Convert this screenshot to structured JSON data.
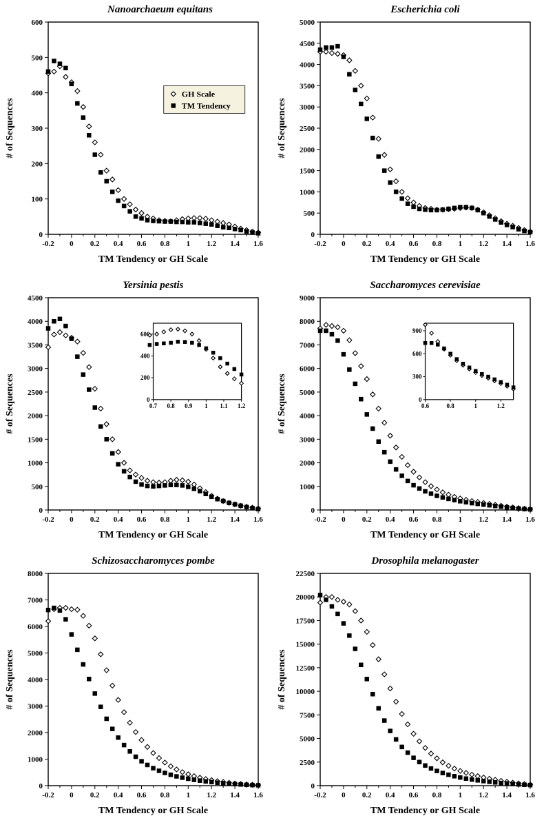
{
  "globals": {
    "xlabel": "TM Tendency or GH Scale",
    "xlabel_alt": "TM Tendency  or GH Scale",
    "ylabel": "# of Sequences",
    "xlim": [
      -0.2,
      1.6
    ],
    "xticks": [
      -0.2,
      0,
      0.2,
      0.4,
      0.6,
      0.8,
      1,
      1.2,
      1.4,
      1.6
    ],
    "title_fontsize": 15,
    "axis_label_fontsize": 14,
    "tick_fontsize": 11,
    "background_color": "#ffffff",
    "axis_color": "#000000",
    "series_gh": {
      "name": "GH Scale",
      "marker": "diamond-open",
      "color": "#000000",
      "fill": "#ffffff",
      "size": 7
    },
    "series_tm": {
      "name": "TM Tendency",
      "marker": "square",
      "color": "#000000",
      "fill": "#000000",
      "size": 6
    }
  },
  "legend": {
    "visible_in_panel": 0,
    "box_color": "#f5f2df",
    "border_color": "#000000",
    "items": [
      "GH Scale",
      "TM Tendency"
    ]
  },
  "panels": [
    {
      "title": "Nanoarchaeum equitans",
      "ylim": [
        0,
        600
      ],
      "ytick_step": 100,
      "x": [
        -0.2,
        -0.15,
        -0.1,
        -0.05,
        0,
        0.05,
        0.1,
        0.15,
        0.2,
        0.25,
        0.3,
        0.35,
        0.4,
        0.45,
        0.5,
        0.55,
        0.6,
        0.65,
        0.7,
        0.75,
        0.8,
        0.85,
        0.9,
        0.95,
        1.0,
        1.05,
        1.1,
        1.15,
        1.2,
        1.25,
        1.3,
        1.35,
        1.4,
        1.45,
        1.5,
        1.55,
        1.6
      ],
      "gh": [
        455,
        460,
        475,
        445,
        430,
        405,
        360,
        305,
        260,
        225,
        180,
        155,
        125,
        100,
        85,
        70,
        60,
        50,
        45,
        40,
        38,
        37,
        40,
        43,
        45,
        46,
        46,
        44,
        40,
        36,
        32,
        28,
        22,
        16,
        12,
        8,
        5
      ],
      "tm": [
        460,
        490,
        482,
        470,
        425,
        370,
        330,
        280,
        225,
        175,
        150,
        120,
        95,
        80,
        65,
        50,
        45,
        40,
        38,
        37,
        36,
        36,
        35,
        35,
        34,
        34,
        32,
        30,
        28,
        24,
        20,
        18,
        15,
        12,
        8,
        5,
        3
      ]
    },
    {
      "title": "Escherichia coli",
      "ylim": [
        0,
        5000
      ],
      "ytick_step": 500,
      "x": [
        -0.2,
        -0.15,
        -0.1,
        -0.05,
        0,
        0.05,
        0.1,
        0.15,
        0.2,
        0.25,
        0.3,
        0.35,
        0.4,
        0.45,
        0.5,
        0.55,
        0.6,
        0.65,
        0.7,
        0.75,
        0.8,
        0.85,
        0.9,
        0.95,
        1.0,
        1.05,
        1.1,
        1.15,
        1.2,
        1.25,
        1.3,
        1.35,
        1.4,
        1.45,
        1.5,
        1.55,
        1.6
      ],
      "gh": [
        4300,
        4300,
        4270,
        4250,
        4220,
        4100,
        3850,
        3500,
        3200,
        2750,
        2250,
        1870,
        1530,
        1250,
        1000,
        850,
        750,
        670,
        620,
        600,
        580,
        580,
        590,
        600,
        620,
        630,
        620,
        580,
        520,
        450,
        380,
        310,
        250,
        200,
        150,
        100,
        60
      ],
      "tm": [
        4350,
        4400,
        4400,
        4430,
        4180,
        3770,
        3400,
        3070,
        2720,
        2270,
        1830,
        1500,
        1220,
        1000,
        840,
        720,
        650,
        600,
        580,
        570,
        570,
        580,
        600,
        620,
        640,
        640,
        620,
        570,
        500,
        420,
        350,
        280,
        220,
        170,
        120,
        80,
        50
      ]
    },
    {
      "title": "Yersinia pestis",
      "ylim": [
        0,
        4500
      ],
      "ytick_step": 500,
      "x": [
        -0.2,
        -0.15,
        -0.1,
        -0.05,
        0,
        0.05,
        0.1,
        0.15,
        0.2,
        0.25,
        0.3,
        0.35,
        0.4,
        0.45,
        0.5,
        0.55,
        0.6,
        0.65,
        0.7,
        0.75,
        0.8,
        0.85,
        0.9,
        0.95,
        1.0,
        1.05,
        1.1,
        1.15,
        1.2,
        1.25,
        1.3,
        1.35,
        1.4,
        1.45,
        1.5,
        1.55,
        1.6
      ],
      "gh": [
        3450,
        3720,
        3770,
        3700,
        3650,
        3570,
        3330,
        3030,
        2570,
        2150,
        1820,
        1500,
        1230,
        1000,
        840,
        750,
        680,
        620,
        590,
        580,
        590,
        620,
        640,
        630,
        600,
        540,
        460,
        380,
        300,
        240,
        190,
        150,
        120,
        90,
        70,
        50,
        30
      ],
      "tm": [
        3850,
        4000,
        4050,
        3900,
        3630,
        3250,
        2870,
        2550,
        2170,
        1770,
        1500,
        1200,
        970,
        820,
        700,
        600,
        540,
        510,
        500,
        510,
        520,
        530,
        530,
        520,
        490,
        450,
        400,
        340,
        280,
        230,
        190,
        150,
        120,
        90,
        60,
        40,
        20
      ],
      "inset": {
        "xlim": [
          0.7,
          1.2
        ],
        "ylim": [
          0,
          700
        ],
        "yticks": [
          0,
          200,
          400,
          600
        ],
        "xticks": [
          0.7,
          0.8,
          0.9,
          1.0,
          1.1,
          1.2
        ],
        "x": [
          0.68,
          0.72,
          0.76,
          0.8,
          0.84,
          0.88,
          0.92,
          0.96,
          1.0,
          1.04,
          1.08,
          1.12,
          1.16,
          1.2
        ],
        "gh": [
          590,
          600,
          620,
          640,
          645,
          630,
          600,
          540,
          460,
          380,
          300,
          240,
          190,
          150
        ],
        "tm": [
          500,
          510,
          515,
          520,
          530,
          528,
          520,
          500,
          470,
          430,
          380,
          330,
          280,
          230
        ]
      }
    },
    {
      "title": "Saccharomyces cerevisiae",
      "ylim": [
        0,
        9000
      ],
      "ytick_step": 1000,
      "x": [
        -0.2,
        -0.15,
        -0.1,
        -0.05,
        0,
        0.05,
        0.1,
        0.15,
        0.2,
        0.25,
        0.3,
        0.35,
        0.4,
        0.45,
        0.5,
        0.55,
        0.6,
        0.65,
        0.7,
        0.75,
        0.8,
        0.85,
        0.9,
        0.95,
        1.0,
        1.05,
        1.1,
        1.15,
        1.2,
        1.25,
        1.3,
        1.35,
        1.4,
        1.45,
        1.5,
        1.55,
        1.6
      ],
      "gh": [
        7700,
        7850,
        7800,
        7750,
        7600,
        7200,
        6650,
        6100,
        5550,
        4900,
        4300,
        3700,
        3150,
        2650,
        2250,
        1900,
        1620,
        1380,
        1180,
        1010,
        870,
        750,
        650,
        560,
        490,
        430,
        380,
        340,
        300,
        260,
        220,
        180,
        140,
        110,
        80,
        55,
        35
      ],
      "tm": [
        7600,
        7600,
        7450,
        7180,
        6600,
        5950,
        5350,
        4700,
        4050,
        3450,
        2900,
        2450,
        2050,
        1720,
        1450,
        1230,
        1050,
        910,
        790,
        690,
        600,
        530,
        470,
        420,
        370,
        330,
        290,
        260,
        230,
        200,
        170,
        140,
        110,
        85,
        60,
        40,
        25
      ],
      "inset": {
        "xlim": [
          0.6,
          1.3
        ],
        "ylim": [
          0,
          1000
        ],
        "yticks": [
          0,
          300,
          600,
          900
        ],
        "xticks": [
          0.6,
          0.8,
          1.0,
          1.2
        ],
        "x": [
          0.6,
          0.65,
          0.7,
          0.75,
          0.8,
          0.85,
          0.9,
          0.95,
          1.0,
          1.05,
          1.1,
          1.15,
          1.2,
          1.25,
          1.3
        ],
        "gh": [
          980,
          870,
          760,
          660,
          580,
          510,
          450,
          400,
          355,
          315,
          280,
          245,
          210,
          175,
          140
        ],
        "tm": [
          740,
          740,
          720,
          670,
          600,
          530,
          470,
          420,
          375,
          335,
          300,
          265,
          230,
          195,
          160
        ]
      }
    },
    {
      "title": "Schizosaccharomyces pombe",
      "ylim": [
        0,
        8000
      ],
      "ytick_step": 1000,
      "x": [
        -0.2,
        -0.15,
        -0.1,
        -0.05,
        0,
        0.05,
        0.1,
        0.15,
        0.2,
        0.25,
        0.3,
        0.35,
        0.4,
        0.45,
        0.5,
        0.55,
        0.6,
        0.65,
        0.7,
        0.75,
        0.8,
        0.85,
        0.9,
        0.95,
        1.0,
        1.05,
        1.1,
        1.15,
        1.2,
        1.25,
        1.3,
        1.35,
        1.4,
        1.45,
        1.5,
        1.55,
        1.6
      ],
      "gh": [
        6200,
        6650,
        6700,
        6700,
        6650,
        6630,
        6400,
        6030,
        5550,
        4950,
        4350,
        3770,
        3230,
        2770,
        2370,
        2020,
        1720,
        1460,
        1230,
        1040,
        870,
        730,
        610,
        510,
        430,
        360,
        300,
        250,
        210,
        170,
        140,
        110,
        85,
        65,
        48,
        34,
        22
      ],
      "tm": [
        6620,
        6700,
        6600,
        6270,
        5700,
        5120,
        4570,
        4020,
        3470,
        2970,
        2520,
        2140,
        1810,
        1530,
        1290,
        1090,
        920,
        780,
        660,
        560,
        480,
        410,
        350,
        300,
        260,
        220,
        190,
        160,
        135,
        112,
        92,
        74,
        58,
        44,
        32,
        22,
        14
      ]
    },
    {
      "title": "Drosophila melanogaster",
      "ylim": [
        0,
        22500
      ],
      "ytick_step": 2500,
      "x": [
        -0.2,
        -0.15,
        -0.1,
        -0.05,
        0,
        0.05,
        0.1,
        0.15,
        0.2,
        0.25,
        0.3,
        0.35,
        0.4,
        0.45,
        0.5,
        0.55,
        0.6,
        0.65,
        0.7,
        0.75,
        0.8,
        0.85,
        0.9,
        0.95,
        1.0,
        1.05,
        1.1,
        1.15,
        1.2,
        1.25,
        1.3,
        1.35,
        1.4,
        1.45,
        1.5,
        1.55,
        1.6
      ],
      "gh": [
        19400,
        20000,
        20000,
        19700,
        19500,
        19200,
        18500,
        17500,
        16300,
        14900,
        13400,
        11800,
        10300,
        8900,
        7600,
        6500,
        5500,
        4700,
        4000,
        3400,
        2900,
        2470,
        2110,
        1810,
        1560,
        1350,
        1170,
        1010,
        870,
        740,
        620,
        510,
        410,
        320,
        240,
        170,
        110
      ],
      "tm": [
        20200,
        19700,
        19000,
        18200,
        17200,
        15900,
        14500,
        12800,
        11300,
        9700,
        8200,
        6900,
        5800,
        4900,
        4100,
        3500,
        2950,
        2500,
        2130,
        1820,
        1560,
        1340,
        1160,
        1000,
        865,
        750,
        650,
        560,
        480,
        410,
        345,
        285,
        230,
        180,
        135,
        95,
        60
      ]
    }
  ]
}
